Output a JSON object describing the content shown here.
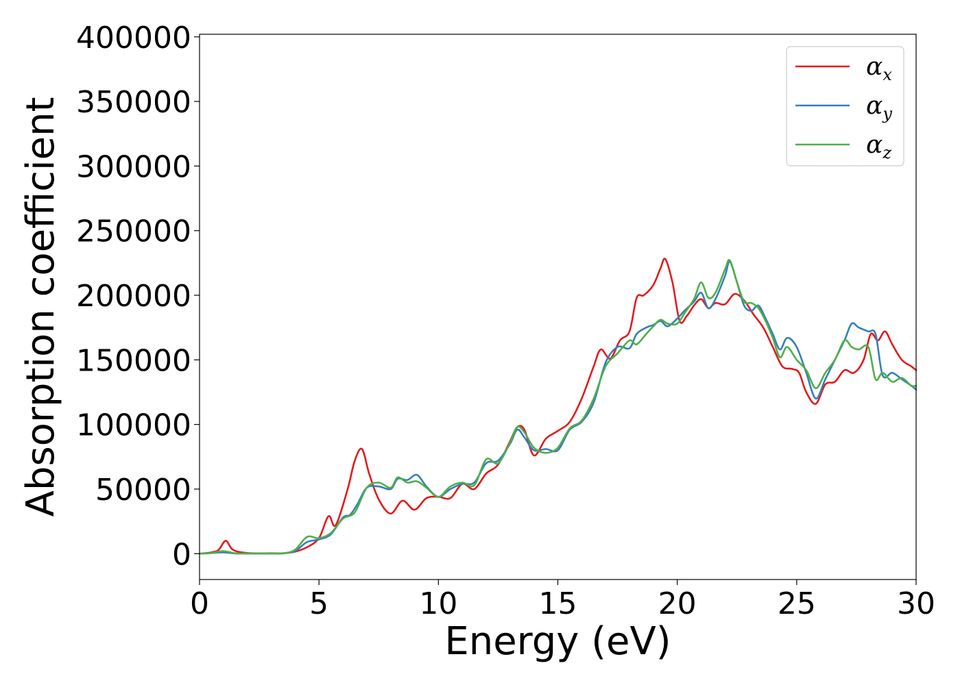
{
  "chart_data": {
    "type": "line",
    "title": "",
    "xlabel": "Energy (eV)",
    "ylabel": "Absorption coefficient",
    "xlim": [
      0,
      30
    ],
    "ylim": [
      -20000,
      402000
    ],
    "xticks": [
      0,
      5,
      10,
      15,
      20,
      25,
      30
    ],
    "yticks": [
      0,
      50000,
      100000,
      150000,
      200000,
      250000,
      300000,
      350000,
      400000
    ],
    "grid": false,
    "legend_position": "top-right",
    "series": [
      {
        "name": "α",
        "subscript": "x",
        "color": "#e41a1c",
        "x": [
          0,
          0.5,
          0.8,
          1.1,
          1.4,
          2,
          3,
          3.5,
          4,
          4.5,
          5,
          5.4,
          5.7,
          6.2,
          6.5,
          6.8,
          7.1,
          7.5,
          8,
          8.5,
          9,
          9.5,
          10,
          10.5,
          11,
          11.5,
          12,
          12.5,
          13,
          13.3,
          13.6,
          14,
          14.5,
          15,
          15.5,
          16,
          16.5,
          16.8,
          17.2,
          17.6,
          18,
          18.3,
          18.6,
          19,
          19.3,
          19.5,
          19.8,
          20.1,
          20.4,
          20.7,
          21,
          21.3,
          21.6,
          22,
          22.4,
          22.8,
          23.2,
          23.6,
          24,
          24.4,
          24.8,
          25.1,
          25.4,
          25.8,
          26.2,
          26.6,
          27,
          27.4,
          27.8,
          28.1,
          28.4,
          28.7,
          29,
          29.4,
          29.8,
          30
        ],
        "values": [
          0,
          1000,
          3000,
          10000,
          3000,
          500,
          300,
          300,
          1500,
          5000,
          12000,
          29000,
          22000,
          50000,
          72000,
          81000,
          62000,
          42000,
          31000,
          41000,
          34000,
          43000,
          44000,
          43000,
          54000,
          50000,
          62000,
          69000,
          87000,
          98000,
          96000,
          76000,
          89000,
          95000,
          102000,
          120000,
          145000,
          158000,
          151000,
          165000,
          172000,
          198000,
          200000,
          208000,
          221000,
          228000,
          210000,
          180000,
          184000,
          192000,
          197000,
          190000,
          194000,
          193000,
          201000,
          196000,
          185000,
          175000,
          160000,
          145000,
          143000,
          140000,
          125000,
          116000,
          131000,
          133000,
          142000,
          140000,
          150000,
          170000,
          165000,
          172000,
          162000,
          150000,
          145000,
          142000
        ]
      },
      {
        "name": "α",
        "subscript": "y",
        "color": "#377eb8",
        "x": [
          0,
          0.5,
          1,
          1.5,
          2,
          3,
          3.5,
          4,
          4.5,
          5,
          5.5,
          6,
          6.3,
          6.6,
          7,
          7.5,
          8,
          8.3,
          8.7,
          9.1,
          9.5,
          10,
          10.5,
          11,
          11.5,
          12,
          12.5,
          13,
          13.3,
          13.6,
          14,
          14.5,
          15,
          15.5,
          16,
          16.5,
          17,
          17.5,
          18,
          18.3,
          18.7,
          19,
          19.3,
          19.6,
          20,
          20.3,
          20.7,
          21,
          21.3,
          21.6,
          22,
          22.2,
          22.5,
          22.8,
          23.1,
          23.4,
          23.7,
          24,
          24.3,
          24.6,
          25,
          25.4,
          25.8,
          26.2,
          26.6,
          27,
          27.3,
          27.6,
          28,
          28.3,
          28.6,
          29,
          29.4,
          29.8,
          30
        ],
        "values": [
          0,
          500,
          1000,
          200,
          100,
          100,
          200,
          2000,
          9000,
          11000,
          15000,
          28000,
          30000,
          38000,
          51000,
          52000,
          50000,
          58000,
          57000,
          61000,
          52000,
          44000,
          50000,
          54000,
          55000,
          70000,
          72000,
          85000,
          96000,
          90000,
          80000,
          81000,
          80000,
          96000,
          102000,
          117000,
          148000,
          160000,
          159000,
          170000,
          175000,
          177000,
          180000,
          176000,
          182000,
          188000,
          195000,
          202000,
          190000,
          197000,
          215000,
          226000,
          210000,
          192000,
          188000,
          192000,
          182000,
          170000,
          158000,
          167000,
          160000,
          140000,
          120000,
          135000,
          150000,
          165000,
          178000,
          175000,
          172000,
          170000,
          138000,
          140000,
          135000,
          130000,
          127000
        ]
      },
      {
        "name": "α",
        "subscript": "z",
        "color": "#4daf4a",
        "x": [
          0,
          0.5,
          1,
          1.5,
          2,
          3,
          3.5,
          4,
          4.5,
          5,
          5.5,
          6,
          6.5,
          7,
          7.5,
          8,
          8.3,
          8.7,
          9.1,
          9.5,
          10,
          10.5,
          11,
          11.5,
          12,
          12.5,
          13,
          13.3,
          13.6,
          14,
          14.5,
          15,
          15.5,
          16,
          16.5,
          17,
          17.5,
          18,
          18.3,
          18.7,
          19,
          19.3,
          19.6,
          20,
          20.3,
          20.7,
          21,
          21.3,
          21.6,
          22,
          22.2,
          22.5,
          22.8,
          23.1,
          23.4,
          23.7,
          24,
          24.3,
          24.6,
          25,
          25.4,
          25.8,
          26.2,
          26.6,
          27,
          27.3,
          27.6,
          28,
          28.3,
          28.6,
          29,
          29.4,
          29.8,
          30
        ],
        "values": [
          0,
          500,
          2000,
          300,
          100,
          100,
          300,
          3000,
          13000,
          12000,
          16000,
          27000,
          32000,
          51000,
          55000,
          51000,
          59000,
          55000,
          56000,
          51000,
          44000,
          52000,
          55000,
          53000,
          73000,
          70000,
          86000,
          98000,
          94000,
          82000,
          78000,
          82000,
          97000,
          103000,
          120000,
          145000,
          155000,
          165000,
          162000,
          170000,
          176000,
          181000,
          178000,
          178000,
          186000,
          197000,
          210000,
          198000,
          202000,
          220000,
          227000,
          210000,
          195000,
          194000,
          190000,
          180000,
          167000,
          152000,
          160000,
          150000,
          142000,
          128000,
          140000,
          150000,
          165000,
          160000,
          158000,
          160000,
          135000,
          140000,
          133000,
          136000,
          130000,
          130000
        ]
      }
    ]
  }
}
